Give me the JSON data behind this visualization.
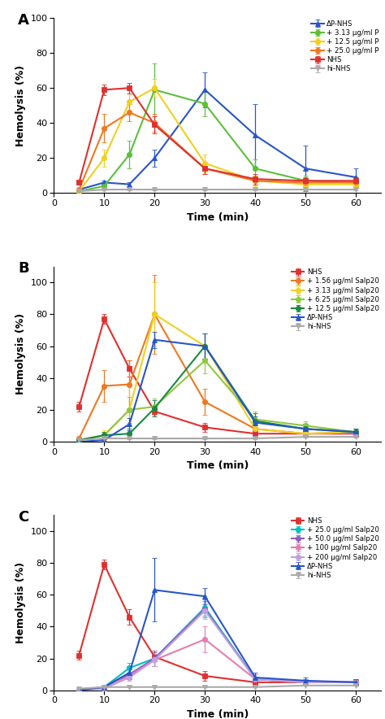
{
  "time": [
    5,
    10,
    15,
    20,
    30,
    40,
    50,
    60
  ],
  "panel_A": {
    "label": "A",
    "series": [
      {
        "label": "ΔP-NHS",
        "color": "#2855C8",
        "marker": "^",
        "y": [
          2,
          6,
          5,
          20,
          59,
          33,
          14,
          9
        ],
        "yerr": [
          0.5,
          1,
          1,
          5,
          10,
          18,
          13,
          5
        ]
      },
      {
        "label": "+ 3.13 μg/ml P",
        "color": "#5CBF3A",
        "marker": "o",
        "y": [
          1,
          4,
          22,
          59,
          51,
          14,
          7,
          6
        ],
        "yerr": [
          0.5,
          2,
          8,
          15,
          7,
          5,
          3,
          3
        ]
      },
      {
        "label": "+ 12.5 μg/ml P",
        "color": "#F0D020",
        "marker": "o",
        "y": [
          1,
          20,
          52,
          60,
          17,
          7,
          5,
          5
        ],
        "yerr": [
          0.5,
          5,
          5,
          5,
          5,
          3,
          2,
          2
        ]
      },
      {
        "label": "+ 25.0 μg/ml P",
        "color": "#F07820",
        "marker": "o",
        "y": [
          2,
          37,
          46,
          40,
          14,
          7,
          6,
          6
        ],
        "yerr": [
          0.5,
          8,
          5,
          5,
          3,
          2,
          2,
          2
        ]
      },
      {
        "label": "NHS",
        "color": "#E03030",
        "marker": "s",
        "y": [
          6,
          59,
          60,
          39,
          14,
          8,
          7,
          7
        ],
        "yerr": [
          1,
          3,
          3,
          5,
          3,
          3,
          2,
          2
        ]
      },
      {
        "label": "hi-NHS",
        "color": "#AAAAAA",
        "marker": "v",
        "y": [
          1,
          2,
          2,
          2,
          2,
          2,
          2,
          2
        ],
        "yerr": [
          0.3,
          0.3,
          0.3,
          0.3,
          0.3,
          0.3,
          0.3,
          0.3
        ]
      }
    ],
    "ylim": [
      0,
      100
    ],
    "yticks": [
      0,
      20,
      40,
      60,
      80,
      100
    ]
  },
  "panel_B": {
    "label": "B",
    "series": [
      {
        "label": "NHS",
        "color": "#E03030",
        "marker": "s",
        "y": [
          22,
          77,
          46,
          19,
          9,
          5,
          5,
          5
        ],
        "yerr": [
          3,
          3,
          5,
          3,
          3,
          2,
          2,
          2
        ]
      },
      {
        "label": "+ 1.56 μg/ml Salp20",
        "color": "#F07820",
        "marker": "o",
        "y": [
          2,
          35,
          36,
          80,
          25,
          8,
          5,
          6
        ],
        "yerr": [
          0.5,
          10,
          15,
          25,
          8,
          3,
          2,
          2
        ]
      },
      {
        "label": "+ 3.13 μg/ml Salp20",
        "color": "#F0D020",
        "marker": "o",
        "y": [
          1,
          4,
          20,
          80,
          60,
          8,
          5,
          6
        ],
        "yerr": [
          0.5,
          3,
          15,
          20,
          8,
          3,
          2,
          2
        ]
      },
      {
        "label": "+ 6.25 μg/ml Salp20",
        "color": "#90C840",
        "marker": "o",
        "y": [
          1,
          4,
          20,
          22,
          51,
          14,
          10,
          6
        ],
        "yerr": [
          0.5,
          2,
          8,
          5,
          8,
          5,
          3,
          2
        ]
      },
      {
        "label": "+ 12.5 μg/ml Salp20",
        "color": "#1A8A40",
        "marker": "o",
        "y": [
          1,
          4,
          5,
          21,
          60,
          13,
          8,
          6
        ],
        "yerr": [
          0.5,
          2,
          3,
          5,
          8,
          5,
          3,
          2
        ]
      },
      {
        "label": "ΔP-NHS",
        "color": "#2855C8",
        "marker": "^",
        "y": [
          0,
          1,
          11,
          64,
          60,
          12,
          8,
          6
        ],
        "yerr": [
          0.3,
          0.5,
          4,
          5,
          8,
          4,
          3,
          2
        ]
      },
      {
        "label": "hi-NHS",
        "color": "#AAAAAA",
        "marker": "v",
        "y": [
          1,
          2,
          2,
          2,
          2,
          2,
          3,
          3
        ],
        "yerr": [
          0.3,
          0.3,
          0.3,
          0.3,
          0.3,
          0.3,
          0.3,
          0.3
        ]
      }
    ],
    "ylim": [
      0,
      110
    ],
    "yticks": [
      0,
      20,
      40,
      60,
      80,
      100
    ]
  },
  "panel_C": {
    "label": "C",
    "series": [
      {
        "label": "NHS",
        "color": "#E03030",
        "marker": "s",
        "y": [
          22,
          79,
          46,
          21,
          9,
          5,
          5,
          5
        ],
        "yerr": [
          3,
          3,
          5,
          3,
          3,
          2,
          2,
          2
        ]
      },
      {
        "label": "+ 25.0 μg/ml Salp20",
        "color": "#00C0C0",
        "marker": "o",
        "y": [
          0,
          2,
          14,
          20,
          52,
          7,
          5,
          5
        ],
        "yerr": [
          0.3,
          1,
          3,
          5,
          5,
          3,
          2,
          2
        ]
      },
      {
        "label": "+ 50.0 μg/ml Salp20",
        "color": "#9060C0",
        "marker": "o",
        "y": [
          0,
          2,
          10,
          20,
          51,
          7,
          5,
          5
        ],
        "yerr": [
          0.3,
          1,
          3,
          5,
          5,
          3,
          2,
          2
        ]
      },
      {
        "label": "+ 100 μg/ml Salp20",
        "color": "#E080B0",
        "marker": "o",
        "y": [
          0,
          2,
          9,
          19,
          32,
          7,
          5,
          5
        ],
        "yerr": [
          0.3,
          1,
          2,
          4,
          8,
          3,
          2,
          2
        ]
      },
      {
        "label": "+ 200 μg/ml Salp20",
        "color": "#C0A0E0",
        "marker": "o",
        "y": [
          0,
          1,
          8,
          19,
          50,
          7,
          5,
          5
        ],
        "yerr": [
          0.3,
          0.5,
          2,
          4,
          5,
          3,
          2,
          2
        ]
      },
      {
        "label": "ΔP-NHS",
        "color": "#2855C8",
        "marker": "^",
        "y": [
          0,
          2,
          11,
          63,
          59,
          8,
          6,
          5
        ],
        "yerr": [
          0.3,
          0.5,
          4,
          20,
          5,
          3,
          2,
          2
        ]
      },
      {
        "label": "hi-NHS",
        "color": "#AAAAAA",
        "marker": "v",
        "y": [
          1,
          2,
          2,
          2,
          2,
          2,
          3,
          3
        ],
        "yerr": [
          0.3,
          0.3,
          0.3,
          0.3,
          0.3,
          0.3,
          0.3,
          0.3
        ]
      }
    ],
    "ylim": [
      0,
      110
    ],
    "yticks": [
      0,
      20,
      40,
      60,
      80,
      100
    ]
  },
  "xlabel": "Time (min)",
  "ylabel": "Hemolysis (%)",
  "xticks": [
    0,
    10,
    20,
    30,
    40,
    50,
    60
  ],
  "xlim": [
    0,
    65
  ],
  "linewidth": 1.5,
  "markersize": 4.5,
  "capsize": 2.5,
  "elinewidth": 0.9
}
